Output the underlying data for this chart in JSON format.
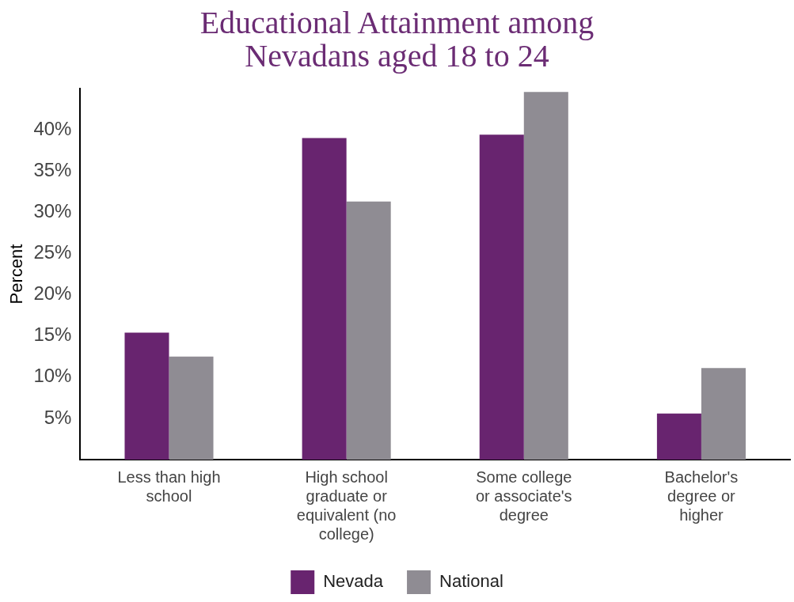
{
  "chart_data": {
    "type": "bar",
    "title": "Educational Attainment among Nevadans aged 18 to 24",
    "ylabel": "Percent",
    "categories": [
      "Less than high school",
      "High school graduate or equivalent (no college)",
      "Some college or associate's degree",
      "Bachelor's degree or higher"
    ],
    "series": [
      {
        "name": "Nevada",
        "color": "#68246f",
        "values": [
          15.4,
          39.0,
          39.4,
          5.6
        ]
      },
      {
        "name": "National",
        "color": "#8f8c93",
        "values": [
          12.5,
          31.3,
          44.6,
          11.1
        ]
      }
    ],
    "ylim": [
      0,
      45
    ],
    "yticks": [
      {
        "value": 5,
        "label": "5%"
      },
      {
        "value": 10,
        "label": "10%"
      },
      {
        "value": 15,
        "label": "15%"
      },
      {
        "value": 20,
        "label": "20%"
      },
      {
        "value": 25,
        "label": "25%"
      },
      {
        "value": 30,
        "label": "30%"
      },
      {
        "value": 35,
        "label": "35%"
      },
      {
        "value": 40,
        "label": "40%"
      }
    ],
    "grid": false,
    "legend": "bottom"
  }
}
